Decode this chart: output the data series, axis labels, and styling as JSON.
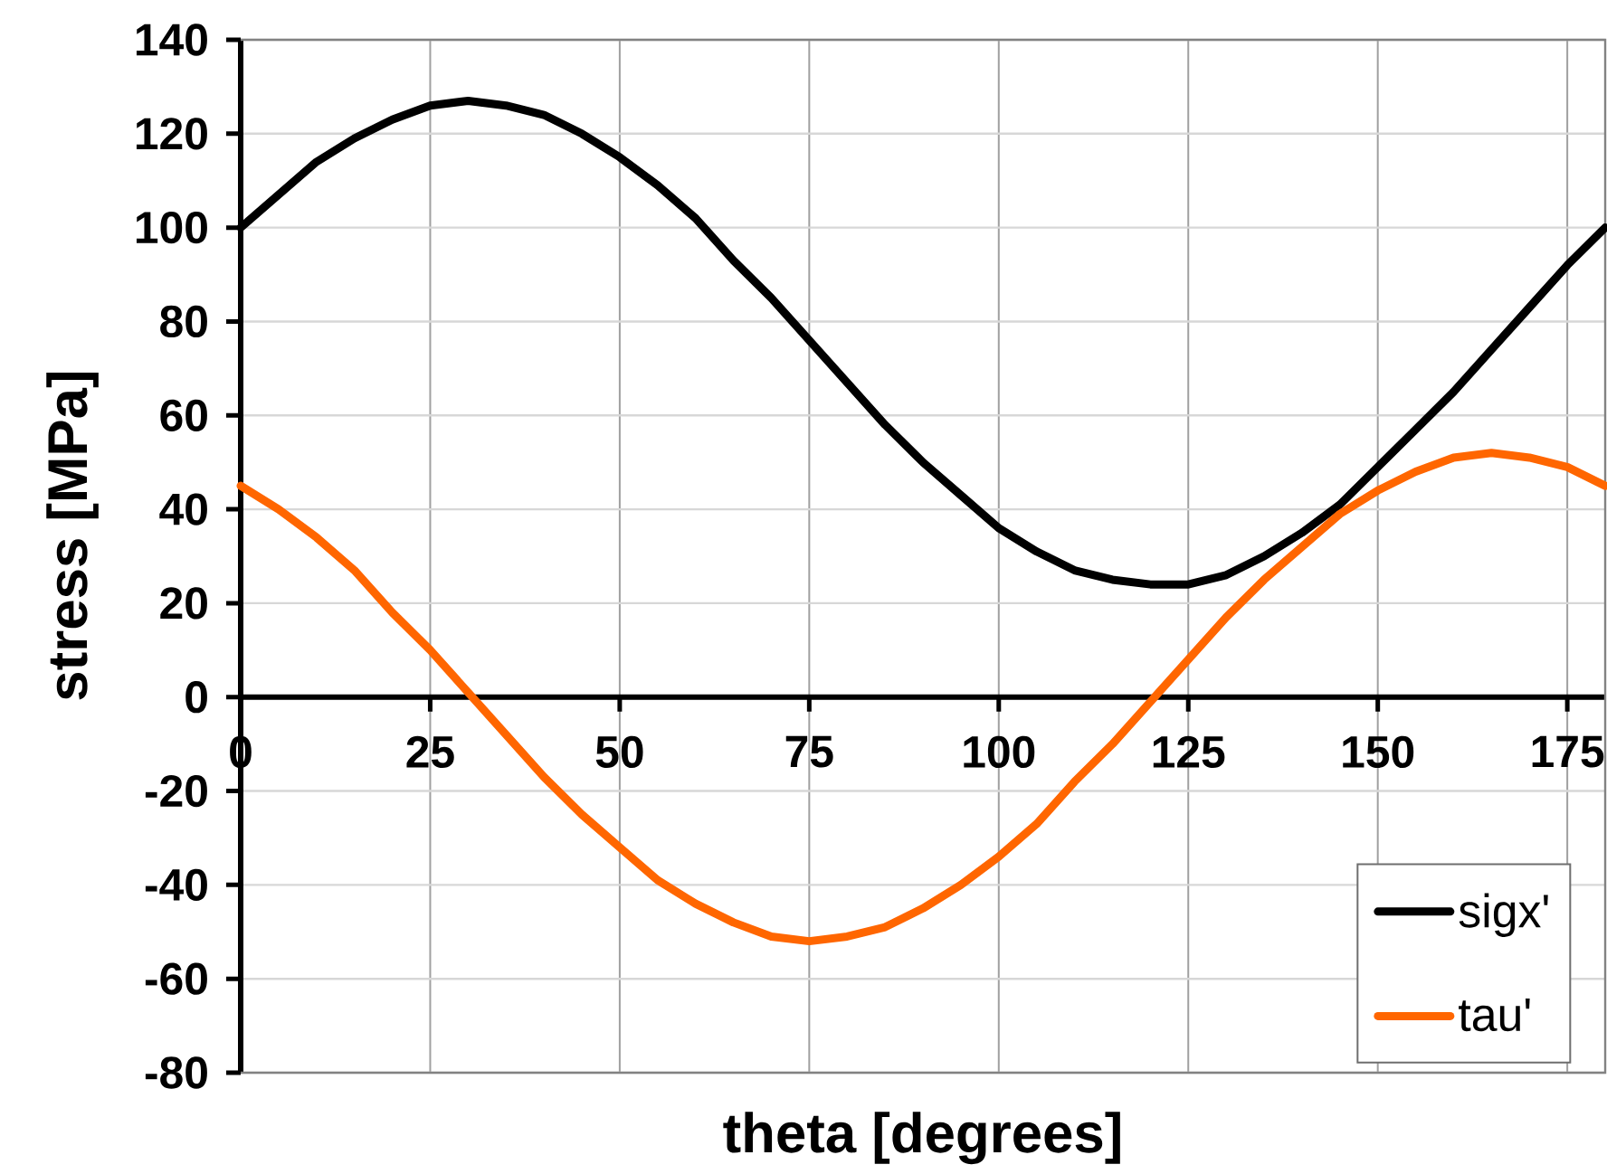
{
  "chart_data": {
    "type": "line",
    "xlabel": "theta [degrees]",
    "ylabel": "stress [MPa]",
    "x": [
      0,
      5,
      10,
      15,
      20,
      25,
      30,
      35,
      40,
      45,
      50,
      55,
      60,
      65,
      70,
      75,
      80,
      85,
      90,
      95,
      100,
      105,
      110,
      115,
      120,
      125,
      130,
      135,
      140,
      145,
      150,
      155,
      160,
      165,
      170,
      175,
      180
    ],
    "series": [
      {
        "name": "sigx'",
        "color": "#000000",
        "values": [
          100,
          107,
          114,
          119,
          123,
          126,
          127,
          126,
          124,
          120,
          115,
          109,
          102,
          93,
          85,
          76,
          67,
          58,
          50,
          43,
          36,
          31,
          27,
          25,
          24,
          24,
          26,
          30,
          35,
          41,
          49,
          57,
          65,
          74,
          83,
          92,
          100
        ]
      },
      {
        "name": "tau'",
        "color": "#ff6600",
        "values": [
          45,
          40,
          34,
          27,
          18,
          10,
          1,
          -8,
          -17,
          -25,
          -32,
          -39,
          -44,
          -48,
          -51,
          -52,
          -51,
          -49,
          -45,
          -40,
          -34,
          -27,
          -18,
          -10,
          -1,
          8,
          17,
          25,
          32,
          39,
          44,
          48,
          51,
          52,
          51,
          49,
          45
        ]
      }
    ],
    "xlim": [
      0,
      180
    ],
    "xticks": [
      0,
      25,
      50,
      75,
      100,
      125,
      150,
      175
    ],
    "ylim": [
      -80,
      140
    ],
    "yticks": [
      -80,
      -60,
      -40,
      -20,
      0,
      20,
      40,
      60,
      80,
      100,
      120,
      140
    ],
    "grid": true,
    "legend": "bottom right",
    "line_style": "solid",
    "marker": "none"
  }
}
